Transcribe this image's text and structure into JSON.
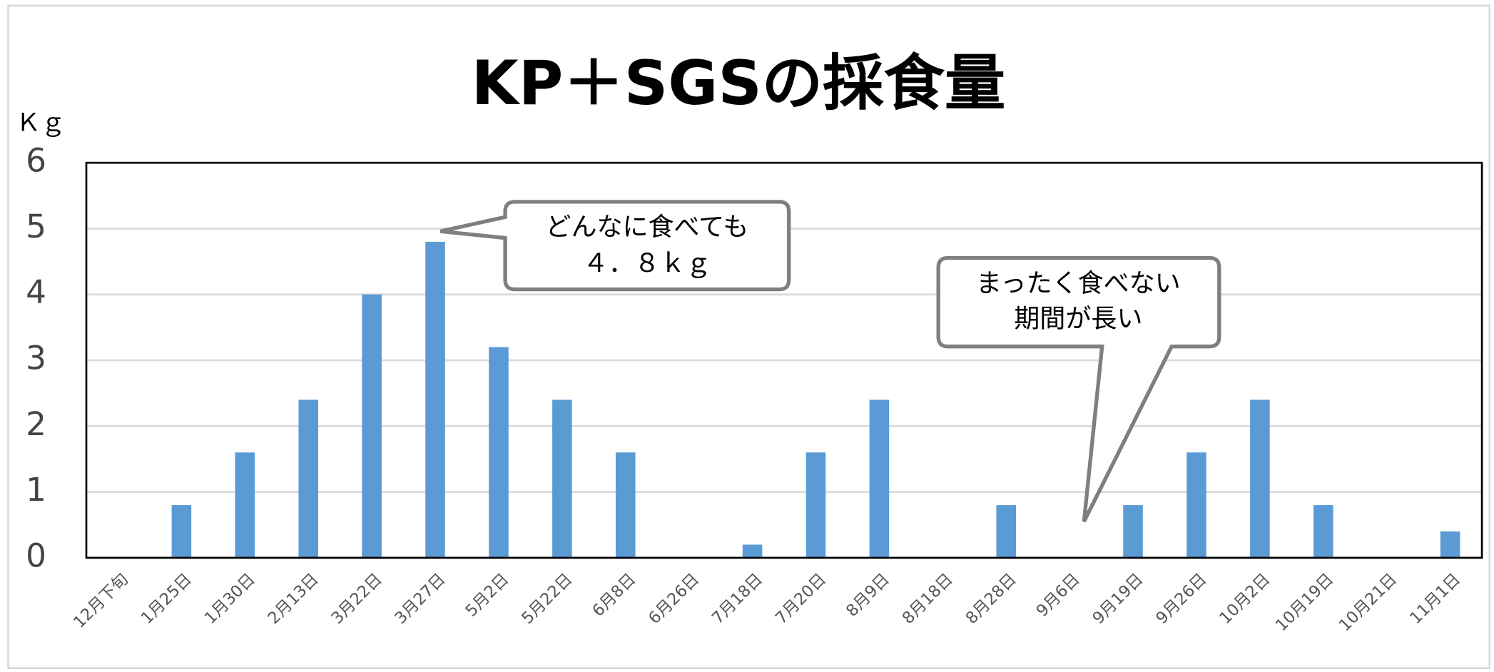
{
  "chart_data": {
    "type": "bar",
    "title": "KP＋SGSの採食量",
    "y_label": "Ｋｇ",
    "categories": [
      "12月下旬",
      "1月25日",
      "1月30日",
      "2月13日",
      "3月22日",
      "3月27日",
      "5月2日",
      "5月22日",
      "6月8日",
      "6月26日",
      "7月18日",
      "7月20日",
      "8月9日",
      "8月18日",
      "8月28日",
      "9月6日",
      "9月19日",
      "9月26日",
      "10月2日",
      "10月19日",
      "10月21日",
      "11月1日"
    ],
    "values": [
      0,
      0.8,
      1.6,
      2.4,
      4,
      4.8,
      3.2,
      2.4,
      1.6,
      0,
      0.2,
      1.6,
      2.4,
      0,
      0.8,
      0,
      0.8,
      1.6,
      2.4,
      0.8,
      0,
      0.4
    ],
    "color": "#5b9bd5",
    "ylim": [
      0,
      6
    ],
    "yticks": [
      0,
      1,
      2,
      3,
      4,
      5,
      6
    ],
    "grid": true,
    "annotations": [
      {
        "lines": [
          "どんなに食べても",
          "４．８ｋｇ"
        ]
      },
      {
        "lines": [
          "まったく食べない",
          "期間が長い"
        ]
      }
    ]
  }
}
